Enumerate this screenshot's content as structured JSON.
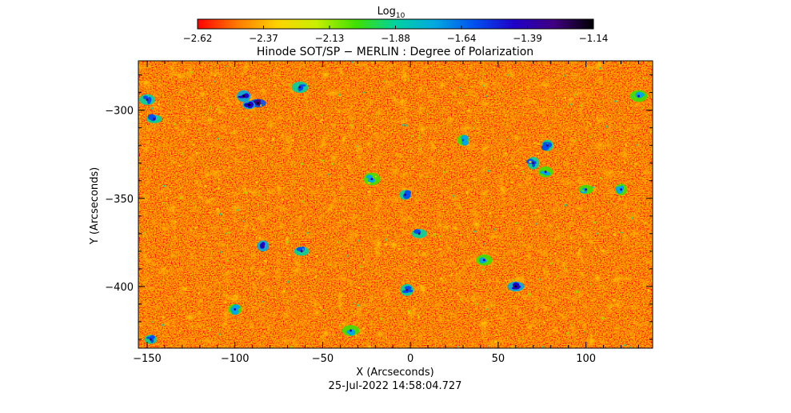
{
  "chart_data": {
    "type": "heatmap",
    "title": "Hinode SOT/SP − MERLIN : Degree of Polarization",
    "colorbar": {
      "label": "Log",
      "label_subscript": "10",
      "ticks": [
        "−2.62",
        "−2.37",
        "−2.13",
        "−1.88",
        "−1.64",
        "−1.39",
        "−1.14"
      ],
      "range": [
        -2.62,
        -1.14
      ],
      "colormap": [
        "#ff0000",
        "#ff7a00",
        "#ffd200",
        "#c8f000",
        "#40e000",
        "#00d2a0",
        "#00a8e0",
        "#0050f0",
        "#2000c8",
        "#400080",
        "#000000"
      ]
    },
    "xlabel": "X (Arcseconds)",
    "ylabel": "Y (Arcseconds)",
    "xlim": [
      -155,
      138
    ],
    "ylim": [
      -435,
      -272
    ],
    "x_ticks": [
      -150,
      -100,
      -50,
      0,
      50,
      100
    ],
    "x_tick_labels": [
      "−150",
      "−100",
      "−50",
      "0",
      "50",
      "100"
    ],
    "y_ticks": [
      -300,
      -350,
      -400
    ],
    "y_tick_labels": [
      "−300",
      "−350",
      "−400"
    ],
    "timestamp": "25-Jul-2022 14:58:04.727",
    "background_value": -2.47,
    "features": [
      {
        "x": -150,
        "y": -294,
        "value": -1.6
      },
      {
        "x": -146,
        "y": -305,
        "value": -1.55
      },
      {
        "x": -95,
        "y": -292,
        "value": -1.45
      },
      {
        "x": -87,
        "y": -296,
        "value": -1.35
      },
      {
        "x": -92,
        "y": -297,
        "value": -1.4
      },
      {
        "x": -63,
        "y": -287,
        "value": -1.6
      },
      {
        "x": -22,
        "y": -339,
        "value": -1.7
      },
      {
        "x": -3,
        "y": -348,
        "value": -1.6
      },
      {
        "x": 5,
        "y": -370,
        "value": -1.55
      },
      {
        "x": -84,
        "y": -377,
        "value": -1.5
      },
      {
        "x": -62,
        "y": -380,
        "value": -1.6
      },
      {
        "x": -2,
        "y": -402,
        "value": -1.6
      },
      {
        "x": 60,
        "y": -400,
        "value": -1.45
      },
      {
        "x": 70,
        "y": -330,
        "value": -1.6
      },
      {
        "x": 78,
        "y": -320,
        "value": -1.55
      },
      {
        "x": 77,
        "y": -335,
        "value": -1.7
      },
      {
        "x": 130,
        "y": -292,
        "value": -1.7
      },
      {
        "x": -148,
        "y": -430,
        "value": -1.6
      },
      {
        "x": -100,
        "y": -413,
        "value": -1.75
      },
      {
        "x": 100,
        "y": -345,
        "value": -1.7
      },
      {
        "x": 120,
        "y": -345,
        "value": -1.75
      },
      {
        "x": 42,
        "y": -385,
        "value": -1.75
      },
      {
        "x": -34,
        "y": -425,
        "value": -1.75
      },
      {
        "x": 30,
        "y": -317,
        "value": -1.8
      }
    ]
  }
}
